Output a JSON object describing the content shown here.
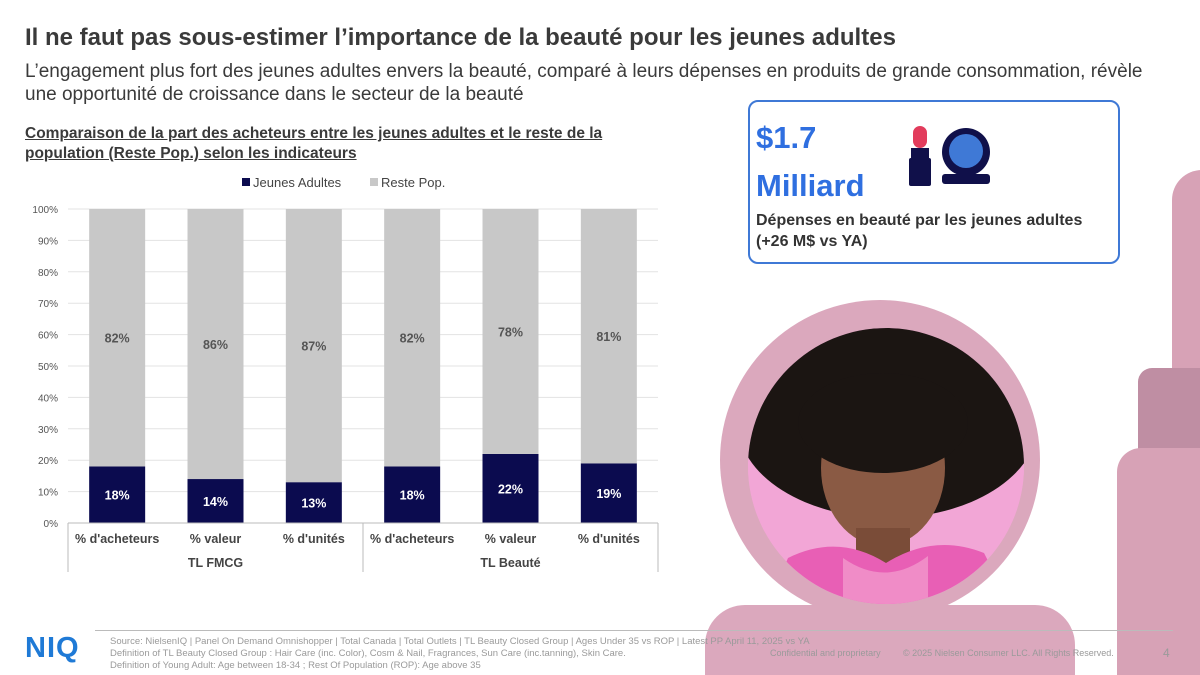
{
  "slide": {
    "title": "Il ne faut pas sous-estimer l’importance de la beauté pour les jeunes adultes",
    "subtitle": "L’engagement plus fort des jeunes adultes envers la beauté, comparé à leurs dépenses en produits de grande consommation, révèle une opportunité de croissance dans le secteur de la beauté"
  },
  "stat_card": {
    "value": "$1.7 Milliard",
    "description": "Dépenses en beauté par les jeunes adultes (+26 M$ vs YA)",
    "icon": "lipstick-compact-icon"
  },
  "chart_data": {
    "type": "bar",
    "stacked": true,
    "title": "Comparaison de la part des acheteurs entre les jeunes adultes et le reste de la population (Reste Pop.) selon les indicateurs",
    "categories": [
      "% d'acheteurs",
      "% valeur",
      "% d'unités",
      "% d'acheteurs",
      "% valeur",
      "% d'unités"
    ],
    "groups": [
      {
        "label": "TL FMCG",
        "count": 3
      },
      {
        "label": "TL Beauté",
        "count": 3
      }
    ],
    "series": [
      {
        "name": "Jeunes Adultes",
        "color": "#0b0b4f",
        "label_color": "#ffffff",
        "values": [
          18,
          14,
          13,
          18,
          22,
          19
        ],
        "labels": [
          "18%",
          "14%",
          "13%",
          "18%",
          "22%",
          "19%"
        ]
      },
      {
        "name": "Reste Pop.",
        "color": "#c8c8c8",
        "label_color": "#555555",
        "values": [
          82,
          86,
          87,
          82,
          78,
          81
        ],
        "labels": [
          "82%",
          "86%",
          "87%",
          "82%",
          "78%",
          "81%"
        ]
      }
    ],
    "y_ticks": [
      "0%",
      "10%",
      "20%",
      "30%",
      "40%",
      "50%",
      "60%",
      "70%",
      "80%",
      "90%",
      "100%"
    ],
    "ylim": [
      0,
      100
    ],
    "grid": true,
    "legend_position": "top"
  },
  "footer": {
    "logo": "NIQ",
    "source": "Source: NielsenIQ | Panel On Demand Omnishopper | Total Canada | Total Outlets | TL Beauty Closed Group | Ages Under 35 vs ROP | Latest PP April 11, 2025 vs YA\nDefinition of TL Beauty Closed Group : Hair Care (inc. Color), Cosm & Nail, Fragrances, Sun Care (inc.tanning), Skin Care.\nDefinition of Young Adult: Age between 18-34 ; Rest Of Population (ROP): Age above 35",
    "confidential": "Confidential and proprietary",
    "copyright": "© 2025 Nielsen Consumer LLC. All Rights Reserved.",
    "page_number": "4"
  }
}
